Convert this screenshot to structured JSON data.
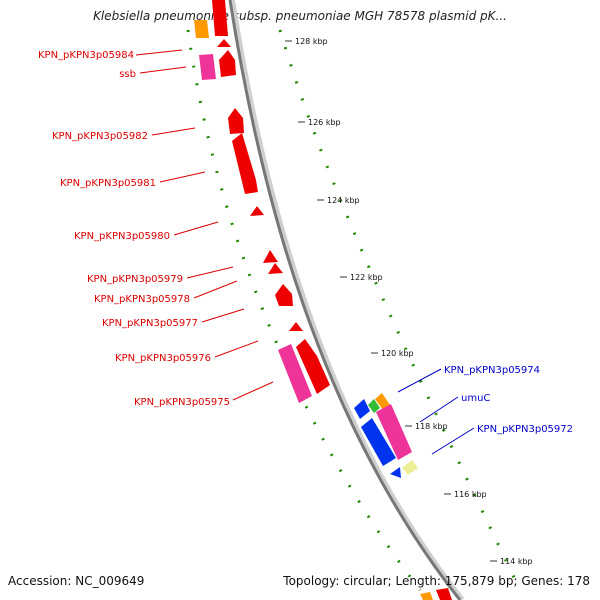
{
  "title": "Klebsiella pneumoniae subsp. pneumoniae MGH 78578 plasmid pK...",
  "accession": "Accession: NC_009649",
  "summary": "Topology: circular; Length: 175,879 bp; Genes: 178",
  "ticks": [
    "128 kbp",
    "126 kbp",
    "124 kbp",
    "122 kbp",
    "120 kbp",
    "118 kbp",
    "116 kbp",
    "114 kbp"
  ],
  "left_labels": [
    "KPN_pKPN3p05984",
    "ssb",
    "KPN_pKPN3p05982",
    "KPN_pKPN3p05981",
    "KPN_pKPN3p05980",
    "KPN_pKPN3p05979",
    "KPN_pKPN3p05978",
    "KPN_pKPN3p05977",
    "KPN_pKPN3p05976",
    "KPN_pKPN3p05975"
  ],
  "right_labels": [
    "KPN_pKPN3p05974",
    "umuC",
    "KPN_pKPN3p05972"
  ],
  "colors": {
    "forward_cds": "#ee0000",
    "pink_cds": "#ee3399",
    "reverse_cds": "#0033ee",
    "orange": "#ff9900",
    "green": "#33bb33",
    "pale_yellow": "#eeee99",
    "gc_skew": "#228800",
    "backbone": "#888888",
    "forward_label": "#dd0000",
    "reverse_label": "#0000cc"
  }
}
